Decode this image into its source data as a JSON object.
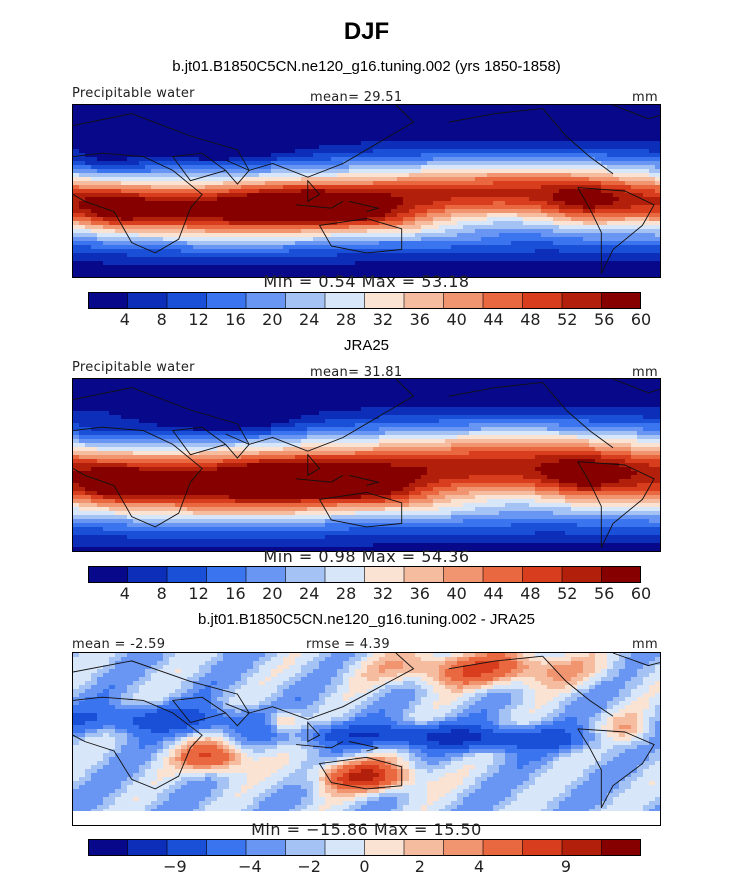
{
  "figure": {
    "title": "DJF",
    "colors": {
      "abs_palette": [
        "#08088b",
        "#0d2eb8",
        "#1a4fd8",
        "#3b74ef",
        "#6996f2",
        "#a4c2f4",
        "#d8e6fa",
        "#fbe3d3",
        "#f6bca0",
        "#f19470",
        "#e96840",
        "#d83d1d",
        "#b21f0a",
        "#860000"
      ],
      "diff_palette": [
        "#08088b",
        "#0d2eb8",
        "#1a4fd8",
        "#3b74ef",
        "#6996f2",
        "#a4c2f4",
        "#d8e6fa",
        "#fbe3d3",
        "#f6bca0",
        "#f19470",
        "#e96840",
        "#d83d1d",
        "#b21f0a",
        "#860000"
      ]
    }
  },
  "panels": [
    {
      "subtitle": "b.jt01.B1850C5CN.ne120_g16.tuning.002 (yrs 1850-1858)",
      "left_label": "Precipitable water",
      "center_label": "mean=  29.51",
      "right_label": "mm",
      "minmax": "Min =    0.54  Max =   53.18",
      "colorbar_ticks": [
        "4",
        "8",
        "12",
        "16",
        "20",
        "24",
        "28",
        "32",
        "36",
        "40",
        "44",
        "48",
        "52",
        "56",
        "60"
      ]
    },
    {
      "subtitle": "JRA25",
      "left_label": "Precipitable water",
      "center_label": "mean=  31.81",
      "right_label": "mm",
      "minmax": "Min =    0.98  Max =   54.36",
      "colorbar_ticks": [
        "4",
        "8",
        "12",
        "16",
        "20",
        "24",
        "28",
        "32",
        "36",
        "40",
        "44",
        "48",
        "52",
        "56",
        "60"
      ]
    },
    {
      "subtitle": "b.jt01.B1850C5CN.ne120_g16.tuning.002 - JRA25",
      "left_label": "mean =  -2.59",
      "center_label": "rmse =   4.39",
      "right_label": "mm",
      "minmax": "Min = −15.86  Max =   15.50",
      "colorbar_ticks": [
        "−9",
        "−4",
        "−2",
        "0",
        "2",
        "4",
        "9"
      ]
    }
  ],
  "chart_data": [
    {
      "type": "heatmap",
      "title": "DJF",
      "subtitle": "b.jt01.B1850C5CN.ne120_g16.tuning.002 (yrs 1850-1858)",
      "variable": "Precipitable water",
      "units": "mm",
      "mean": 29.51,
      "min": 0.54,
      "max": 53.18,
      "levels": [
        4,
        8,
        12,
        16,
        20,
        24,
        28,
        32,
        36,
        40,
        44,
        48,
        52,
        56,
        60
      ],
      "pattern": "model"
    },
    {
      "type": "heatmap",
      "title": "JRA25",
      "variable": "Precipitable water",
      "units": "mm",
      "mean": 31.81,
      "min": 0.98,
      "max": 54.36,
      "levels": [
        4,
        8,
        12,
        16,
        20,
        24,
        28,
        32,
        36,
        40,
        44,
        48,
        52,
        56,
        60
      ],
      "pattern": "obs"
    },
    {
      "type": "heatmap",
      "title": "b.jt01.B1850C5CN.ne120_g16.tuning.002 - JRA25",
      "units": "mm",
      "mean": -2.59,
      "rmse": 4.39,
      "min": -15.86,
      "max": 15.5,
      "levels": [
        -9,
        -4,
        -2,
        0,
        2,
        4,
        9
      ],
      "pattern": "diff"
    }
  ]
}
